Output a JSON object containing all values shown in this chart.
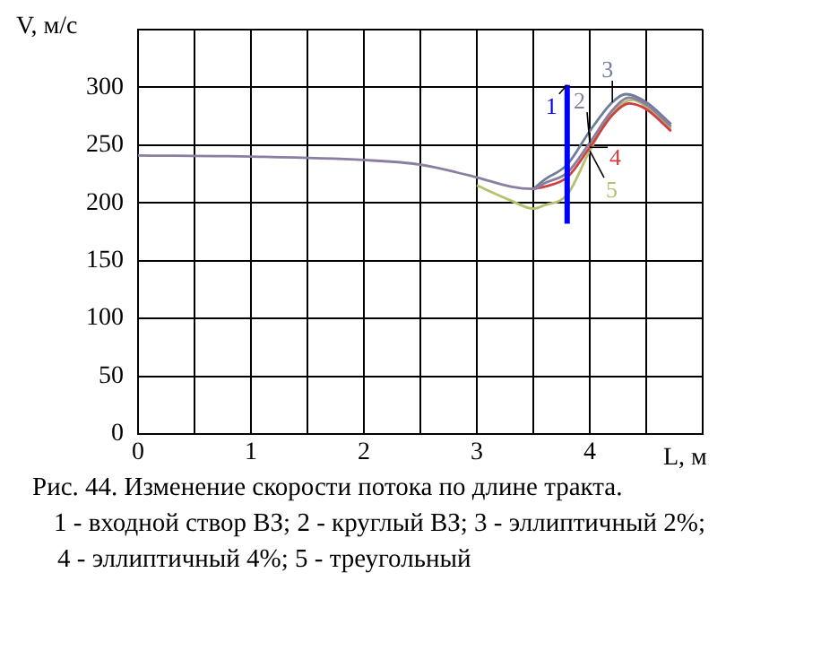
{
  "chart_data": {
    "type": "line",
    "xlabel": "L, м",
    "ylabel": "V, м/с",
    "xlim": [
      0,
      5
    ],
    "xticks": [
      0,
      {
        "value": 0.5,
        "label": null
      },
      1,
      {
        "value": 1.5,
        "label": null
      },
      2,
      {
        "value": 2.5,
        "label": null
      },
      3,
      {
        "value": 3.5,
        "label": null
      },
      4,
      {
        "value": 4.5,
        "label": null
      },
      {
        "value": 5,
        "label": null
      }
    ],
    "ylim": [
      0,
      350
    ],
    "yticks": [
      0,
      50,
      100,
      150,
      200,
      250,
      300,
      {
        "value": 350,
        "label": null
      }
    ],
    "grid": true,
    "legend": false,
    "marker": "none",
    "line_style": "solid",
    "series": [
      {
        "name": "1",
        "color": "#0000ff",
        "x": [
          3.8,
          3.8
        ],
        "values": [
          182,
          302
        ]
      },
      {
        "name": "2",
        "color": "#8a7fa0",
        "x": [
          0,
          1,
          2,
          2.5,
          3,
          3.3,
          3.5,
          3.6,
          3.8,
          4.0,
          4.2,
          4.35,
          4.5,
          4.72
        ],
        "values": [
          241,
          240,
          237,
          233,
          222,
          214,
          212,
          217,
          226,
          252,
          280,
          291,
          285,
          266
        ]
      },
      {
        "name": "3",
        "color": "#6e7e9a",
        "x": [
          3.5,
          3.6,
          3.8,
          4.0,
          4.2,
          4.32,
          4.5,
          4.72
        ],
        "values": [
          212,
          220,
          233,
          262,
          287,
          294,
          287,
          268
        ]
      },
      {
        "name": "4",
        "color": "#d04040",
        "x": [
          3.5,
          3.6,
          3.8,
          4.0,
          4.2,
          4.35,
          4.5,
          4.72
        ],
        "values": [
          212,
          214,
          222,
          248,
          276,
          286,
          281,
          262
        ]
      },
      {
        "name": "5",
        "color": "#b8c070",
        "x": [
          3.0,
          3.3,
          3.5,
          3.6,
          3.8,
          4.0,
          4.2,
          4.38,
          4.5,
          4.72
        ],
        "values": [
          215,
          202,
          195,
          198,
          207,
          245,
          278,
          289,
          283,
          264
        ]
      }
    ],
    "annotations": [
      "Рис. 44. Изменение скорости потока по длине тракта.",
      "1 - входной створ ВЗ; 2 - круглый ВЗ; 3 - эллиптичный 2%;",
      "4 - эллиптичный 4%; 5 - треугольный"
    ]
  }
}
